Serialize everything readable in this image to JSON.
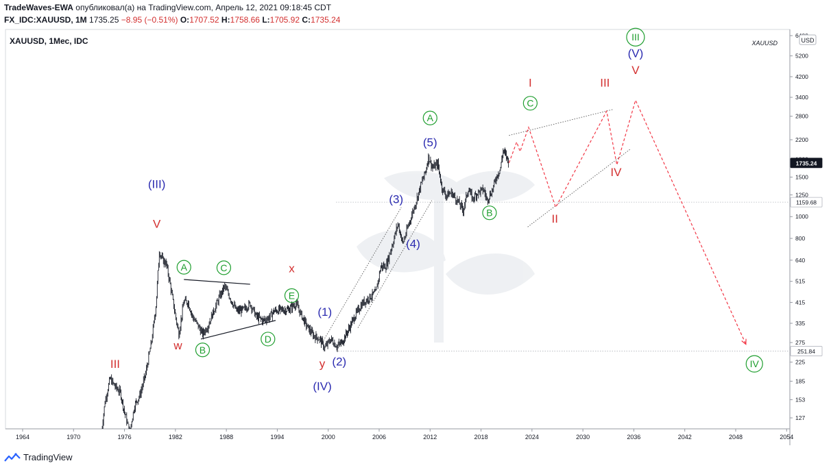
{
  "header": {
    "author": "TradeWaves-EWA",
    "published": "опубликовал(а) на TradingView.com, Апрель 12, 2021 09:18:45 CDT",
    "symbol_line": "FX_IDC:XAUUSD, 1M",
    "last": "1735.25",
    "change": "−8.95 (−0.51%)",
    "open_label": "O:",
    "open": "1707.52",
    "high_label": "H:",
    "high": "1758.66",
    "low_label": "L:",
    "low": "1705.92",
    "close_label": "C:",
    "close": "1735.24"
  },
  "footer": {
    "brand": "TradingView"
  },
  "chart_data": {
    "type": "line",
    "title": "XAUUSD, 1Мес, IDC",
    "watermark": "XAUUSD",
    "currency": "USD",
    "y_scale": "log",
    "ylim": [
      110,
      6800
    ],
    "xlim": [
      1963,
      2050
    ],
    "x_ticks": [
      "1964",
      "1970",
      "1976",
      "1982",
      "1988",
      "1994",
      "2000",
      "2006",
      "2012",
      "2018",
      "2024",
      "2030",
      "2036",
      "2042",
      "2048",
      "2054"
    ],
    "y_ticks": [
      "127",
      "153",
      "185",
      "225",
      "275",
      "335",
      "415",
      "515",
      "640",
      "800",
      "1000",
      "1250",
      "1500",
      "1800",
      "2200",
      "2800",
      "3400",
      "4200",
      "5200",
      "6400"
    ],
    "price_labels": [
      {
        "value": 1735.24,
        "text": "1735.24",
        "style": "dark"
      },
      {
        "value": 1159.68,
        "text": "1159.68",
        "style": "light"
      },
      {
        "value": 251.84,
        "text": "251.84",
        "style": "light"
      }
    ],
    "price_series": [
      [
        1973.3,
        110
      ],
      [
        1973.7,
        150
      ],
      [
        1974.3,
        190
      ],
      [
        1974.9,
        175
      ],
      [
        1975.5,
        165
      ],
      [
        1976.0,
        135
      ],
      [
        1976.6,
        110
      ],
      [
        1977.2,
        145
      ],
      [
        1977.8,
        160
      ],
      [
        1978.5,
        200
      ],
      [
        1979.2,
        280
      ],
      [
        1979.7,
        400
      ],
      [
        1980.1,
        700
      ],
      [
        1980.5,
        640
      ],
      [
        1980.9,
        620
      ],
      [
        1981.3,
        520
      ],
      [
        1981.8,
        400
      ],
      [
        1982.4,
        300
      ],
      [
        1983.0,
        420
      ],
      [
        1983.5,
        415
      ],
      [
        1984.0,
        360
      ],
      [
        1984.6,
        330
      ],
      [
        1985.2,
        300
      ],
      [
        1985.8,
        325
      ],
      [
        1986.5,
        380
      ],
      [
        1987.2,
        440
      ],
      [
        1987.8,
        490
      ],
      [
        1988.5,
        430
      ],
      [
        1989.2,
        380
      ],
      [
        1990.0,
        385
      ],
      [
        1990.8,
        410
      ],
      [
        1991.5,
        360
      ],
      [
        1992.3,
        345
      ],
      [
        1993.0,
        355
      ],
      [
        1993.6,
        380
      ],
      [
        1994.5,
        385
      ],
      [
        1995.3,
        385
      ],
      [
        1996.2,
        410
      ],
      [
        1996.9,
        360
      ],
      [
        1997.5,
        325
      ],
      [
        1998.3,
        295
      ],
      [
        1999.0,
        285
      ],
      [
        1999.6,
        260
      ],
      [
        2000.3,
        285
      ],
      [
        2001.0,
        265
      ],
      [
        2001.6,
        275
      ],
      [
        2002.4,
        315
      ],
      [
        2003.2,
        365
      ],
      [
        2004.0,
        410
      ],
      [
        2004.8,
        435
      ],
      [
        2005.6,
        460
      ],
      [
        2006.2,
        600
      ],
      [
        2006.8,
        600
      ],
      [
        2007.6,
        760
      ],
      [
        2008.2,
        930
      ],
      [
        2008.8,
        760
      ],
      [
        2009.5,
        930
      ],
      [
        2010.2,
        1120
      ],
      [
        2010.9,
        1380
      ],
      [
        2011.5,
        1600
      ],
      [
        2011.8,
        1850
      ],
      [
        2012.3,
        1650
      ],
      [
        2012.9,
        1720
      ],
      [
        2013.4,
        1350
      ],
      [
        2013.9,
        1240
      ],
      [
        2014.5,
        1280
      ],
      [
        2015.2,
        1180
      ],
      [
        2015.9,
        1070
      ],
      [
        2016.5,
        1330
      ],
      [
        2017.0,
        1200
      ],
      [
        2017.6,
        1280
      ],
      [
        2018.3,
        1320
      ],
      [
        2018.7,
        1190
      ],
      [
        2019.3,
        1300
      ],
      [
        2019.8,
        1500
      ],
      [
        2020.3,
        1650
      ],
      [
        2020.6,
        1970
      ],
      [
        2020.9,
        1880
      ],
      [
        2021.3,
        1735
      ]
    ],
    "forecast_path": [
      [
        2021.3,
        1735
      ],
      [
        2022.2,
        2150
      ],
      [
        2022.6,
        1950
      ],
      [
        2023.6,
        2500
      ],
      [
        2026.8,
        1100
      ],
      [
        2032.8,
        2950
      ],
      [
        2034.0,
        1700
      ],
      [
        2036.2,
        3300
      ],
      [
        2049.2,
        270
      ]
    ],
    "wave_labels": [
      {
        "text": "(III)",
        "x": 1979.8,
        "y": 1400,
        "color": "#2b2bb0",
        "circle": false
      },
      {
        "text": "V",
        "x": 1979.8,
        "y": 930,
        "color": "#d32f2f",
        "circle": false
      },
      {
        "text": "III",
        "x": 1974.9,
        "y": 221,
        "color": "#d32f2f",
        "circle": false
      },
      {
        "text": "w",
        "x": 1982.3,
        "y": 267,
        "color": "#d32f2f",
        "circle": false
      },
      {
        "text": "A",
        "x": 1983.0,
        "y": 595,
        "color": "#1e9e2e",
        "circle": true
      },
      {
        "text": "B",
        "x": 1985.2,
        "y": 255,
        "color": "#1e9e2e",
        "circle": true
      },
      {
        "text": "C",
        "x": 1987.7,
        "y": 592,
        "color": "#1e9e2e",
        "circle": true
      },
      {
        "text": "D",
        "x": 1992.9,
        "y": 285,
        "color": "#1e9e2e",
        "circle": true
      },
      {
        "text": "E",
        "x": 1995.7,
        "y": 445,
        "color": "#1e9e2e",
        "circle": true
      },
      {
        "text": "x",
        "x": 1995.7,
        "y": 590,
        "color": "#d32f2f",
        "circle": false
      },
      {
        "text": "(1)",
        "x": 1999.6,
        "y": 377,
        "color": "#2b2bb0",
        "circle": false
      },
      {
        "text": "y",
        "x": 1999.3,
        "y": 222,
        "color": "#d32f2f",
        "circle": false
      },
      {
        "text": "(2)",
        "x": 2001.3,
        "y": 227,
        "color": "#2b2bb0",
        "circle": false
      },
      {
        "text": "(IV)",
        "x": 1999.3,
        "y": 176,
        "color": "#2b2bb0",
        "circle": false
      },
      {
        "text": "(3)",
        "x": 2008.0,
        "y": 1200,
        "color": "#2b2bb0",
        "circle": false
      },
      {
        "text": "(4)",
        "x": 2010.0,
        "y": 760,
        "color": "#2b2bb0",
        "circle": false
      },
      {
        "text": "(5)",
        "x": 2012.0,
        "y": 2150,
        "color": "#2b2bb0",
        "circle": false
      },
      {
        "text": "A",
        "x": 2012.0,
        "y": 2750,
        "color": "#1e9e2e",
        "circle": true
      },
      {
        "text": "B",
        "x": 2019.0,
        "y": 1040,
        "color": "#1e9e2e",
        "circle": true
      },
      {
        "text": "C",
        "x": 2023.8,
        "y": 3200,
        "color": "#1e9e2e",
        "circle": true
      },
      {
        "text": "I",
        "x": 2023.8,
        "y": 3950,
        "color": "#d32f2f",
        "circle": false
      },
      {
        "text": "II",
        "x": 2026.7,
        "y": 980,
        "color": "#d32f2f",
        "circle": false
      },
      {
        "text": "III",
        "x": 2032.6,
        "y": 3950,
        "color": "#d32f2f",
        "circle": false
      },
      {
        "text": "IV",
        "x": 2033.9,
        "y": 1580,
        "color": "#d32f2f",
        "circle": false
      },
      {
        "text": "V",
        "x": 2036.2,
        "y": 4500,
        "color": "#d32f2f",
        "circle": false
      },
      {
        "text": "(V)",
        "x": 2036.2,
        "y": 5350,
        "color": "#2b2bb0",
        "circle": false
      },
      {
        "text": "III",
        "x": 2036.2,
        "y": 6300,
        "color": "#1e9e2e",
        "circle": true
      },
      {
        "text": "IV",
        "x": 2050.2,
        "y": 221,
        "color": "#1e9e2e",
        "circle": true
      }
    ],
    "trend_lines": [
      {
        "from": [
          1983.0,
          525
        ],
        "to": [
          1990.8,
          500
        ],
        "style": "solid"
      },
      {
        "from": [
          1985.0,
          285
        ],
        "to": [
          1993.8,
          345
        ],
        "style": "solid"
      },
      {
        "from": [
          2021.3,
          2300
        ],
        "to": [
          2033.5,
          3000
        ],
        "style": "dotted"
      },
      {
        "from": [
          2023.5,
          900
        ],
        "to": [
          2035.6,
          2000
        ],
        "style": "dotted"
      },
      {
        "from": [
          1999.3,
          275
        ],
        "to": [
          2008.6,
          1100
        ],
        "style": "dotted"
      },
      {
        "from": [
          2003.5,
          320
        ],
        "to": [
          2012.2,
          1180
        ],
        "style": "dotted"
      }
    ],
    "grid": false,
    "legend": "none"
  }
}
